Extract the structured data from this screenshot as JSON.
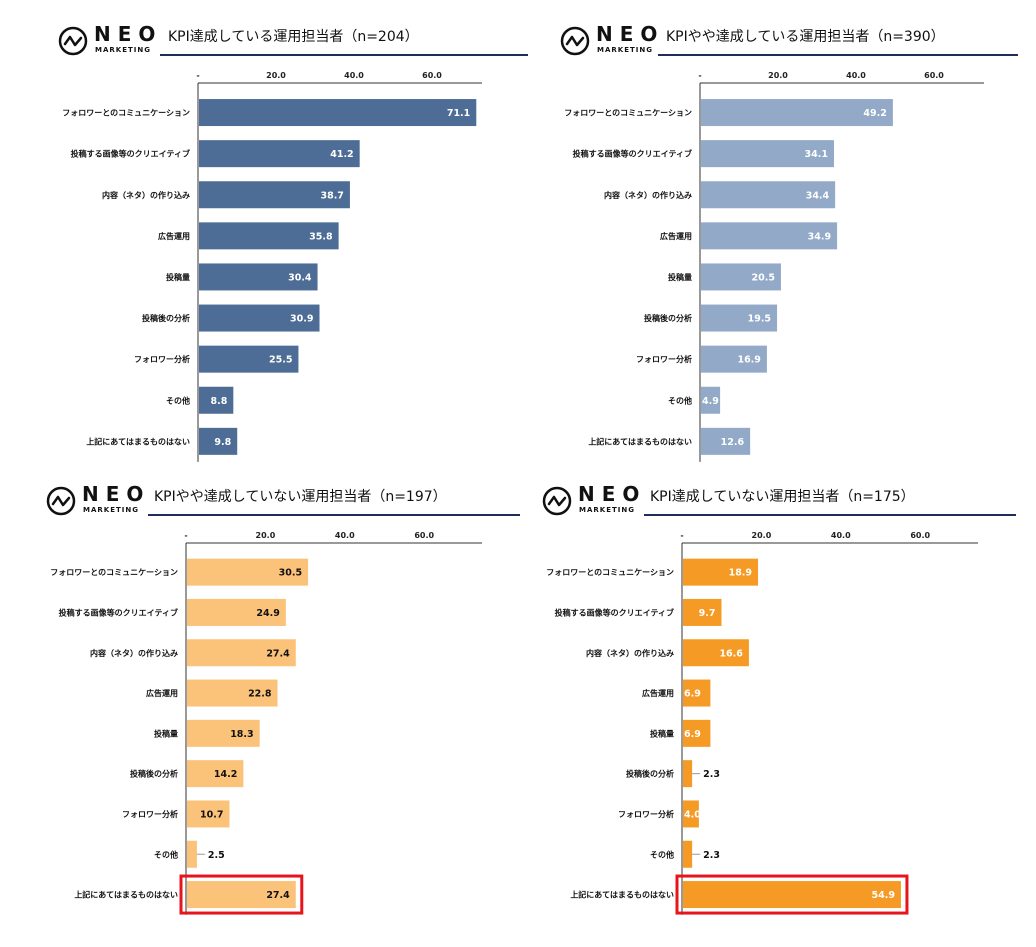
{
  "logo": {
    "name": "NEO",
    "sub": "MARKETING"
  },
  "axis": {
    "ticks": [
      "-",
      "20.0",
      "40.0",
      "60.0"
    ]
  },
  "charts": [
    {
      "title": "KPI達成している運用担当者（n=204）",
      "color": "#4e6d96",
      "highlight": false,
      "categories": [
        "フォロワーとのコミュニケーション",
        "投稿する画像等のクリエイティブ",
        "内容（ネタ）の作り込み",
        "広告運用",
        "投稿量",
        "投稿後の分析",
        "フォロワー分析",
        "その他",
        "上記にあてはまるものはない"
      ],
      "values": [
        71.1,
        41.2,
        38.7,
        35.8,
        30.4,
        30.9,
        25.5,
        8.8,
        9.8
      ],
      "labels": [
        "71.1",
        "41.2",
        "38.7",
        "35.8",
        "30.4",
        "30.9",
        "25.5",
        "8.8",
        "9.8"
      ]
    },
    {
      "title": "KPIやや達成している運用担当者（n=390）",
      "color": "#93a9c8",
      "highlight": false,
      "categories": [
        "フォロワーとのコミュニケーション",
        "投稿する画像等のクリエイティブ",
        "内容（ネタ）の作り込み",
        "広告運用",
        "投稿量",
        "投稿後の分析",
        "フォロワー分析",
        "その他",
        "上記にあてはまるものはない"
      ],
      "values": [
        49.2,
        34.1,
        34.4,
        34.9,
        20.5,
        19.5,
        16.9,
        4.9,
        12.6
      ],
      "labels": [
        "49.2",
        "34.1",
        "34.4",
        "34.9",
        "20.5",
        "19.5",
        "16.9",
        "4.9",
        "12.6"
      ]
    },
    {
      "title": "KPIやや達成していない運用担当者（n=197）",
      "color": "#fbc279",
      "highlight": true,
      "categories": [
        "フォロワーとのコミュニケーション",
        "投稿する画像等のクリエイティブ",
        "内容（ネタ）の作り込み",
        "広告運用",
        "投稿量",
        "投稿後の分析",
        "フォロワー分析",
        "その他",
        "上記にあてはまるものはない"
      ],
      "values": [
        30.5,
        24.9,
        27.4,
        22.8,
        18.3,
        14.2,
        10.7,
        2.5,
        27.4
      ],
      "labels": [
        "30.5",
        "24.9",
        "27.4",
        "22.8",
        "18.3",
        "14.2",
        "10.7",
        "2.5",
        "27.4"
      ]
    },
    {
      "title": "KPI達成していない運用担当者（n=175）",
      "color": "#f59b25",
      "highlight": true,
      "categories": [
        "フォロワーとのコミュニケーション",
        "投稿する画像等のクリエイティブ",
        "内容（ネタ）の作り込み",
        "広告運用",
        "投稿量",
        "投稿後の分析",
        "フォロワー分析",
        "その他",
        "上記にあてはまるものはない"
      ],
      "values": [
        18.9,
        9.7,
        16.6,
        6.9,
        6.9,
        2.3,
        4.0,
        2.3,
        54.9
      ],
      "labels": [
        "18.9",
        "9.7",
        "16.6",
        "6.9",
        "6.9",
        "2.3",
        "4.0",
        "2.3",
        "54.9"
      ]
    }
  ],
  "chart_data": [
    {
      "type": "bar",
      "title": "KPI達成している運用担当者（n=204）",
      "categories": [
        "フォロワーとのコミュニケーション",
        "投稿する画像等のクリエイティブ",
        "内容（ネタ）の作り込み",
        "広告運用",
        "投稿量",
        "投稿後の分析",
        "フォロワー分析",
        "その他",
        "上記にあてはまるものはない"
      ],
      "values": [
        71.1,
        41.2,
        38.7,
        35.8,
        30.4,
        30.9,
        25.5,
        8.8,
        9.8
      ],
      "xlim": [
        0,
        75
      ]
    },
    {
      "type": "bar",
      "title": "KPIやや達成している運用担当者（n=390）",
      "categories": [
        "フォロワーとのコミュニケーション",
        "投稿する画像等のクリエイティブ",
        "内容（ネタ）の作り込み",
        "広告運用",
        "投稿量",
        "投稿後の分析",
        "フォロワー分析",
        "その他",
        "上記にあてはまるものはない"
      ],
      "values": [
        49.2,
        34.1,
        34.4,
        34.9,
        20.5,
        19.5,
        16.9,
        4.9,
        12.6
      ],
      "xlim": [
        0,
        75
      ]
    },
    {
      "type": "bar",
      "title": "KPIやや達成していない運用担当者（n=197）",
      "categories": [
        "フォロワーとのコミュニケーション",
        "投稿する画像等のクリエイティブ",
        "内容（ネタ）の作り込み",
        "広告運用",
        "投稿量",
        "投稿後の分析",
        "フォロワー分析",
        "その他",
        "上記にあてはまるものはない"
      ],
      "values": [
        30.5,
        24.9,
        27.4,
        22.8,
        18.3,
        14.2,
        10.7,
        2.5,
        27.4
      ],
      "xlim": [
        0,
        75
      ]
    },
    {
      "type": "bar",
      "title": "KPI達成していない運用担当者（n=175）",
      "categories": [
        "フォロワーとのコミュニケーション",
        "投稿する画像等のクリエイティブ",
        "内容（ネタ）の作り込み",
        "広告運用",
        "投稿量",
        "投稿後の分析",
        "フォロワー分析",
        "その他",
        "上記にあてはまるものはない"
      ],
      "values": [
        18.9,
        9.7,
        16.6,
        6.9,
        6.9,
        2.3,
        4.0,
        2.3,
        54.9
      ],
      "xlim": [
        0,
        75
      ]
    }
  ]
}
